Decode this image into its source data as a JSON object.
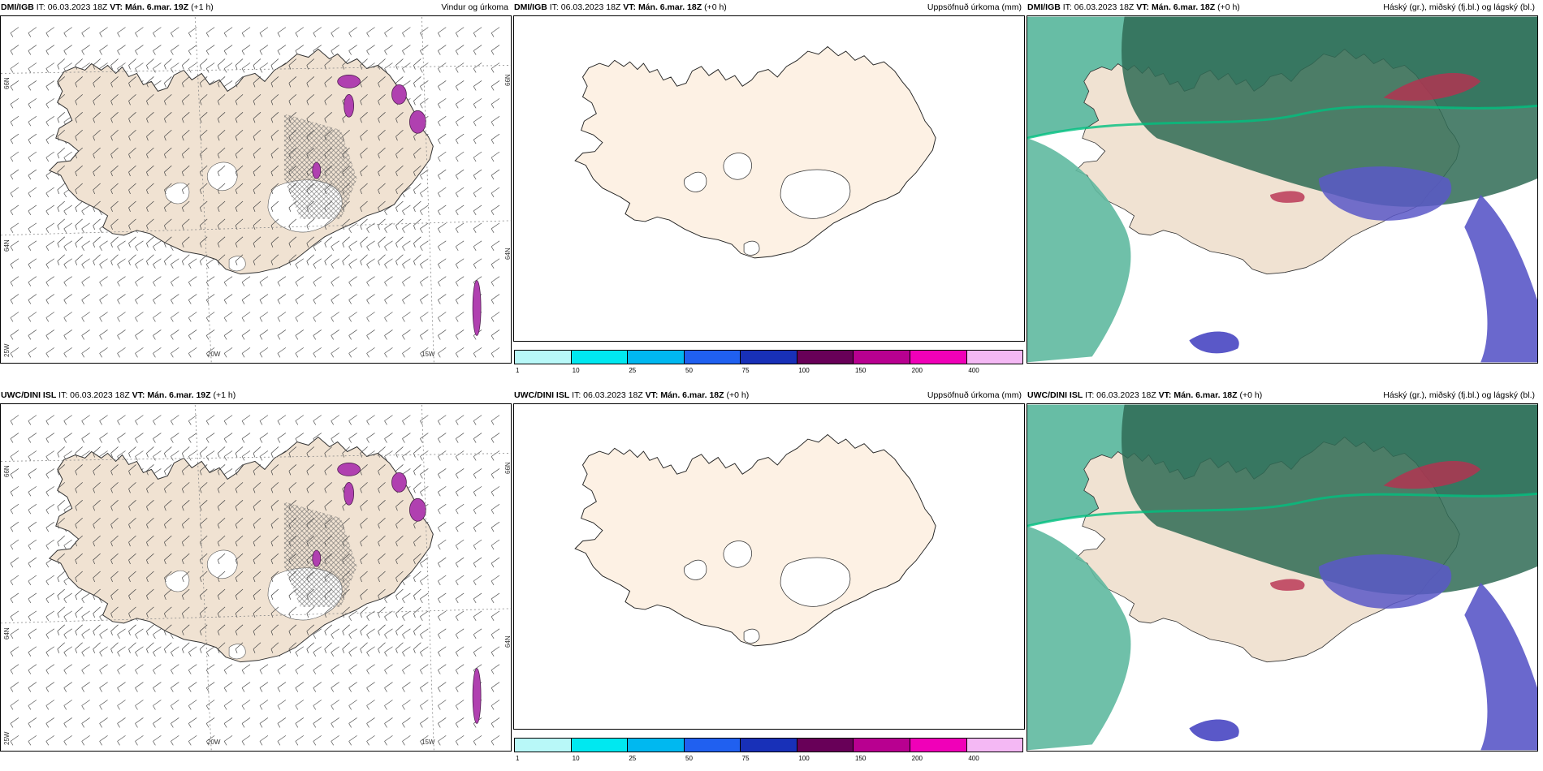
{
  "panels": [
    {
      "model": "DMI/IGB",
      "it": "IT: 06.03.2023 18Z",
      "vt_label": "VT:",
      "vt": "Mán. 6.mar. 19Z",
      "lead": "(+1 h)",
      "title": "Vindur og úrkoma",
      "kind": "wind"
    },
    {
      "model": "DMI/IGB",
      "it": "IT: 06.03.2023 18Z",
      "vt_label": "VT:",
      "vt": "Mán. 6.mar. 18Z",
      "lead": "(+0 h)",
      "title": "Uppsöfnuð úrkoma (mm)",
      "kind": "precip"
    },
    {
      "model": "DMI/IGB",
      "it": "IT: 06.03.2023 18Z",
      "vt_label": "VT:",
      "vt": "Mán. 6.mar. 18Z",
      "lead": "(+0 h)",
      "title": "Háský (gr.), miðský (fj.bl.) og lágský (bl.)",
      "kind": "cloud"
    },
    {
      "model": "UWC/DINI ISL",
      "it": "IT: 06.03.2023 18Z",
      "vt_label": "VT:",
      "vt": "Mán. 6.mar. 19Z",
      "lead": "(+1 h)",
      "title": "",
      "kind": "wind"
    },
    {
      "model": "UWC/DINI ISL",
      "it": "IT: 06.03.2023 18Z",
      "vt_label": "VT:",
      "vt": "Mán. 6.mar. 18Z",
      "lead": "(+0 h)",
      "title": "Uppsöfnuð úrkoma (mm)",
      "kind": "precip"
    },
    {
      "model": "UWC/DINI ISL",
      "it": "IT: 06.03.2023 18Z",
      "vt_label": "VT:",
      "vt": "Mán. 6.mar. 18Z",
      "lead": "(+0 h)",
      "title": "Háský (gr.), miðský (fj.bl.) og lágský (bl.)",
      "kind": "cloud"
    }
  ],
  "grid_labels": {
    "lat66": "66N",
    "lat64": "64N",
    "lon25": "25W",
    "lon20": "20W",
    "lon15": "15W",
    "lat66e": "66N",
    "lat64e": "64N"
  },
  "colorbar": {
    "ticks": [
      "1",
      "10",
      "25",
      "50",
      "75",
      "100",
      "150",
      "200",
      "400"
    ],
    "colors": [
      "#b8f8f8",
      "#00e8f0",
      "#00b8f0",
      "#2060f0",
      "#1830b8",
      "#680058",
      "#b80090",
      "#f000b8",
      "#f4b8f4"
    ]
  },
  "colors": {
    "land": "#f0e2d2",
    "land_precip": "#fdf1e4",
    "cloud_high": "#2f6b55",
    "cloud_mid": "#5fb9a0",
    "cloud_low": "#5a58c8",
    "precip_magenta": "#b040b0"
  }
}
